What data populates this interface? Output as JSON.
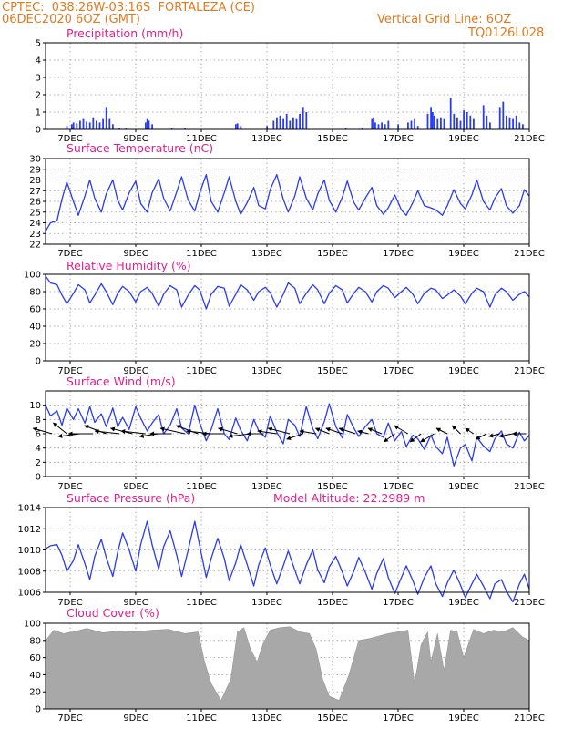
{
  "header": {
    "line1": "CPTEC:  038:26W-03:16S  FORTALEZA (CE)",
    "line2": "06DEC2020 6OZ (GMT)",
    "right1": "Vertical Grid Line: 6OZ",
    "right2": "TQ0126L028"
  },
  "colors": {
    "header": "#e07a1f",
    "titles": "#e0208c",
    "series": "#2a3cf0",
    "cloud": "#a8a8a8",
    "arrows": "#000000"
  },
  "x_ticks": [
    "7DEC",
    "9DEC",
    "11DEC",
    "13DEC",
    "15DEC",
    "17DEC",
    "19DEC",
    "21DEC"
  ],
  "chart_data": [
    {
      "type": "bar",
      "title": "Precipitation (mm/h)",
      "ylim": [
        0,
        5
      ],
      "yticks": [
        "0",
        "1",
        "2",
        "3",
        "4",
        "5"
      ],
      "x_range_days": [
        6.25,
        21.0
      ],
      "bars": [
        [
          6.9,
          0.2
        ],
        [
          7.05,
          0.3
        ],
        [
          7.1,
          0.4
        ],
        [
          7.2,
          0.35
        ],
        [
          7.3,
          0.5
        ],
        [
          7.4,
          0.6
        ],
        [
          7.5,
          0.45
        ],
        [
          7.6,
          0.4
        ],
        [
          7.7,
          0.7
        ],
        [
          7.8,
          0.5
        ],
        [
          7.9,
          0.4
        ],
        [
          8.0,
          0.6
        ],
        [
          8.1,
          1.3
        ],
        [
          8.2,
          0.6
        ],
        [
          8.3,
          0.3
        ],
        [
          8.5,
          0.1
        ],
        [
          8.7,
          0.1
        ],
        [
          9.3,
          0.4
        ],
        [
          9.35,
          0.6
        ],
        [
          9.4,
          0.5
        ],
        [
          9.5,
          0.3
        ],
        [
          10.1,
          0.1
        ],
        [
          10.5,
          0.1
        ],
        [
          12.05,
          0.3
        ],
        [
          12.1,
          0.35
        ],
        [
          12.2,
          0.2
        ],
        [
          13.0,
          0.2
        ],
        [
          13.2,
          0.5
        ],
        [
          13.3,
          0.7
        ],
        [
          13.4,
          0.8
        ],
        [
          13.5,
          0.6
        ],
        [
          13.6,
          0.9
        ],
        [
          13.7,
          0.5
        ],
        [
          13.8,
          0.7
        ],
        [
          13.9,
          0.6
        ],
        [
          14.0,
          0.9
        ],
        [
          14.1,
          1.3
        ],
        [
          14.2,
          1.0
        ],
        [
          15.4,
          0.1
        ],
        [
          15.9,
          0.1
        ],
        [
          16.2,
          0.6
        ],
        [
          16.25,
          0.7
        ],
        [
          16.3,
          0.4
        ],
        [
          16.4,
          0.3
        ],
        [
          16.5,
          0.4
        ],
        [
          16.6,
          0.3
        ],
        [
          16.7,
          0.5
        ],
        [
          17.0,
          0.3
        ],
        [
          17.3,
          0.4
        ],
        [
          17.4,
          0.5
        ],
        [
          17.5,
          0.6
        ],
        [
          17.6,
          0.2
        ],
        [
          17.9,
          0.9
        ],
        [
          18.0,
          1.3
        ],
        [
          18.05,
          1.0
        ],
        [
          18.1,
          0.8
        ],
        [
          18.2,
          0.6
        ],
        [
          18.3,
          0.7
        ],
        [
          18.4,
          0.6
        ],
        [
          18.6,
          1.8
        ],
        [
          18.7,
          0.9
        ],
        [
          18.8,
          0.7
        ],
        [
          18.9,
          0.5
        ],
        [
          19.0,
          1.1
        ],
        [
          19.1,
          1.0
        ],
        [
          19.2,
          0.8
        ],
        [
          19.3,
          0.6
        ],
        [
          19.6,
          1.4
        ],
        [
          19.7,
          0.8
        ],
        [
          19.8,
          0.4
        ],
        [
          20.1,
          1.3
        ],
        [
          20.2,
          1.6
        ],
        [
          20.3,
          0.8
        ],
        [
          20.4,
          0.7
        ],
        [
          20.5,
          0.6
        ],
        [
          20.6,
          0.8
        ],
        [
          20.7,
          0.4
        ],
        [
          20.8,
          0.3
        ]
      ]
    },
    {
      "type": "line",
      "title": "Surface Temperature (nC)",
      "ylim": [
        22,
        30
      ],
      "yticks": [
        "22",
        "23",
        "24",
        "25",
        "26",
        "27",
        "28",
        "29",
        "30"
      ],
      "x": [
        6.25,
        6.4,
        6.6,
        6.75,
        6.9,
        7.1,
        7.25,
        7.45,
        7.6,
        7.75,
        7.95,
        8.1,
        8.3,
        8.45,
        8.6,
        8.8,
        9.0,
        9.15,
        9.35,
        9.5,
        9.7,
        9.85,
        10.05,
        10.25,
        10.4,
        10.6,
        10.8,
        10.95,
        11.15,
        11.3,
        11.5,
        11.7,
        11.85,
        12.05,
        12.2,
        12.4,
        12.6,
        12.75,
        12.95,
        13.1,
        13.3,
        13.5,
        13.65,
        13.85,
        14.0,
        14.2,
        14.4,
        14.55,
        14.75,
        14.9,
        15.1,
        15.3,
        15.45,
        15.65,
        15.8,
        16.0,
        16.2,
        16.35,
        16.55,
        16.7,
        16.9,
        17.1,
        17.25,
        17.45,
        17.6,
        17.8,
        18.0,
        18.15,
        18.35,
        18.5,
        18.7,
        18.9,
        19.05,
        19.25,
        19.4,
        19.6,
        19.8,
        19.95,
        20.15,
        20.3,
        20.5,
        20.7,
        20.85,
        21.0
      ],
      "values": [
        23.2,
        24.0,
        24.2,
        26.2,
        27.8,
        26.0,
        24.7,
        26.5,
        28.0,
        26.3,
        25.0,
        26.7,
        28.0,
        26.1,
        25.2,
        26.8,
        27.9,
        25.8,
        25.0,
        26.8,
        28.1,
        26.3,
        25.1,
        26.9,
        28.3,
        26.1,
        25.1,
        26.8,
        28.5,
        26.0,
        25.0,
        26.8,
        28.3,
        26.0,
        24.8,
        25.9,
        27.3,
        25.6,
        25.3,
        27.1,
        28.5,
        26.2,
        25.0,
        26.5,
        28.3,
        26.3,
        25.2,
        26.7,
        28.0,
        26.1,
        25.0,
        26.4,
        27.9,
        25.9,
        25.2,
        26.3,
        27.3,
        25.6,
        24.8,
        25.4,
        26.6,
        25.2,
        24.7,
        25.9,
        27.0,
        25.6,
        25.4,
        25.2,
        24.7,
        25.6,
        27.1,
        25.8,
        25.3,
        26.6,
        28.0,
        26.0,
        25.2,
        26.3,
        27.2,
        25.6,
        24.9,
        25.6,
        27.1,
        26.5
      ]
    },
    {
      "type": "line",
      "title": "Relative Humidity (%)",
      "ylim": [
        0,
        100
      ],
      "yticks": [
        "0",
        "20",
        "40",
        "60",
        "80",
        "100"
      ],
      "x": [
        6.25,
        6.4,
        6.6,
        6.75,
        6.9,
        7.1,
        7.25,
        7.45,
        7.6,
        7.75,
        7.95,
        8.1,
        8.3,
        8.45,
        8.6,
        8.8,
        9.0,
        9.15,
        9.35,
        9.5,
        9.7,
        9.85,
        10.05,
        10.25,
        10.4,
        10.6,
        10.8,
        10.95,
        11.15,
        11.3,
        11.5,
        11.7,
        11.85,
        12.05,
        12.2,
        12.4,
        12.6,
        12.75,
        12.95,
        13.1,
        13.3,
        13.5,
        13.65,
        13.85,
        14.0,
        14.2,
        14.4,
        14.55,
        14.75,
        14.9,
        15.1,
        15.3,
        15.45,
        15.65,
        15.8,
        16.0,
        16.2,
        16.35,
        16.55,
        16.7,
        16.9,
        17.1,
        17.25,
        17.45,
        17.6,
        17.8,
        18.0,
        18.15,
        18.35,
        18.5,
        18.7,
        18.9,
        19.05,
        19.25,
        19.4,
        19.6,
        19.8,
        19.95,
        20.15,
        20.3,
        20.5,
        20.7,
        20.85,
        21.0
      ],
      "values": [
        98,
        90,
        88,
        76,
        66,
        78,
        88,
        82,
        67,
        76,
        89,
        80,
        65,
        78,
        86,
        80,
        68,
        80,
        85,
        78,
        63,
        77,
        87,
        82,
        62,
        76,
        87,
        82,
        60,
        77,
        86,
        84,
        63,
        77,
        88,
        82,
        70,
        80,
        85,
        79,
        62,
        77,
        90,
        84,
        66,
        78,
        88,
        82,
        66,
        78,
        87,
        82,
        67,
        78,
        85,
        80,
        68,
        80,
        87,
        84,
        73,
        80,
        85,
        77,
        66,
        78,
        84,
        82,
        72,
        76,
        82,
        75,
        66,
        78,
        84,
        80,
        62,
        76,
        84,
        80,
        70,
        77,
        80,
        74
      ]
    },
    {
      "type": "line",
      "title": "Surface Wind (m/s)",
      "ylim": [
        0,
        12
      ],
      "yticks": [
        "0",
        "2",
        "4",
        "6",
        "8",
        "10"
      ],
      "x": [
        6.25,
        6.4,
        6.6,
        6.75,
        6.9,
        7.1,
        7.25,
        7.45,
        7.6,
        7.75,
        7.95,
        8.1,
        8.3,
        8.45,
        8.6,
        8.8,
        9.0,
        9.15,
        9.35,
        9.5,
        9.7,
        9.85,
        10.05,
        10.25,
        10.4,
        10.6,
        10.8,
        10.95,
        11.15,
        11.3,
        11.5,
        11.7,
        11.85,
        12.05,
        12.2,
        12.4,
        12.6,
        12.75,
        12.95,
        13.1,
        13.3,
        13.5,
        13.65,
        13.85,
        14.0,
        14.2,
        14.4,
        14.55,
        14.75,
        14.9,
        15.1,
        15.3,
        15.45,
        15.65,
        15.8,
        16.0,
        16.2,
        16.35,
        16.55,
        16.7,
        16.9,
        17.1,
        17.25,
        17.45,
        17.6,
        17.8,
        18.0,
        18.15,
        18.35,
        18.5,
        18.7,
        18.9,
        19.05,
        19.25,
        19.4,
        19.6,
        19.8,
        19.95,
        20.15,
        20.3,
        20.5,
        20.7,
        20.85,
        21.0
      ],
      "values": [
        10.0,
        8.5,
        9.2,
        7.2,
        9.6,
        8.0,
        9.5,
        7.5,
        9.8,
        7.6,
        8.8,
        7.0,
        9.6,
        7.0,
        8.3,
        6.6,
        9.8,
        8.2,
        6.4,
        7.5,
        8.7,
        6.0,
        7.2,
        9.5,
        6.8,
        6.0,
        10.0,
        7.5,
        5.0,
        6.6,
        9.5,
        6.0,
        5.2,
        8.2,
        6.5,
        5.0,
        8.0,
        6.4,
        5.5,
        8.5,
        6.2,
        4.6,
        8.0,
        7.2,
        5.6,
        9.8,
        6.7,
        5.3,
        7.7,
        10.2,
        7.0,
        5.4,
        8.7,
        6.8,
        5.6,
        7.0,
        8.0,
        6.0,
        5.5,
        7.5,
        5.0,
        6.3,
        4.2,
        5.8,
        5.3,
        3.8,
        5.8,
        4.2,
        3.2,
        5.5,
        1.5,
        4.0,
        4.5,
        2.2,
        5.5,
        4.3,
        3.5,
        5.3,
        6.4,
        4.6,
        4.0,
        6.2,
        5.0,
        5.8
      ],
      "vector_x_days": [
        6.45,
        6.9,
        7.3,
        7.7,
        8.1,
        8.5,
        8.9,
        9.3,
        9.7,
        10.1,
        10.5,
        10.9,
        11.3,
        11.7,
        12.1,
        12.5,
        12.9,
        13.3,
        13.7,
        14.1,
        14.5,
        14.9,
        15.3,
        15.7,
        16.1,
        16.5,
        16.9,
        17.3,
        17.7,
        18.1,
        18.5,
        18.9,
        19.3,
        19.7,
        20.1,
        20.5,
        20.9
      ],
      "vector_u": [
        -7,
        -5,
        -8,
        -9,
        -8,
        -9,
        -8,
        -9,
        -7,
        -8,
        -9,
        -8,
        -9,
        -8,
        -7,
        -8,
        -6,
        -7,
        -8,
        -6,
        -6,
        -5,
        -6,
        -6,
        -4,
        -5,
        -4,
        -5,
        -4,
        -5,
        -4,
        -3,
        -3,
        -4,
        -4,
        -5,
        -5
      ],
      "vector_v": [
        2,
        4,
        -1,
        0,
        3,
        1,
        2,
        1,
        -1,
        0,
        2,
        3,
        1,
        0,
        2,
        -1,
        0,
        1,
        2,
        -2,
        1,
        2,
        2,
        2,
        1,
        2,
        -3,
        3,
        -3,
        -3,
        2,
        3,
        2,
        -2,
        -1,
        -1,
        0
      ]
    },
    {
      "type": "line",
      "title": "Surface Pressure (hPa)",
      "annotation": "Model Altitude: 22.2989  m",
      "ylim": [
        1006,
        1014
      ],
      "yticks": [
        "1006",
        "1008",
        "1010",
        "1012",
        "1014"
      ],
      "x": [
        6.25,
        6.4,
        6.6,
        6.75,
        6.9,
        7.1,
        7.25,
        7.45,
        7.6,
        7.75,
        7.95,
        8.1,
        8.3,
        8.45,
        8.6,
        8.8,
        9.0,
        9.15,
        9.35,
        9.5,
        9.7,
        9.85,
        10.05,
        10.25,
        10.4,
        10.6,
        10.8,
        10.95,
        11.15,
        11.3,
        11.5,
        11.7,
        11.85,
        12.05,
        12.2,
        12.4,
        12.6,
        12.75,
        12.95,
        13.1,
        13.3,
        13.5,
        13.65,
        13.85,
        14.0,
        14.2,
        14.4,
        14.55,
        14.75,
        14.9,
        15.1,
        15.3,
        15.45,
        15.65,
        15.8,
        16.0,
        16.2,
        16.35,
        16.55,
        16.7,
        16.9,
        17.1,
        17.25,
        17.45,
        17.6,
        17.8,
        18.0,
        18.15,
        18.35,
        18.5,
        18.7,
        18.9,
        19.05,
        19.25,
        19.4,
        19.6,
        19.8,
        19.95,
        20.15,
        20.3,
        20.5,
        20.7,
        20.85,
        21.0
      ],
      "values": [
        1010.1,
        1010.4,
        1010.5,
        1009.5,
        1008.0,
        1009.0,
        1010.5,
        1008.7,
        1007.2,
        1009.4,
        1011.0,
        1009.3,
        1007.5,
        1009.8,
        1011.6,
        1010.0,
        1008.0,
        1010.5,
        1012.7,
        1010.5,
        1008.2,
        1010.3,
        1011.8,
        1009.5,
        1007.5,
        1010.0,
        1012.7,
        1010.4,
        1007.4,
        1009.2,
        1011.1,
        1009.2,
        1007.1,
        1008.8,
        1010.5,
        1008.6,
        1006.6,
        1008.6,
        1010.2,
        1008.6,
        1006.8,
        1008.5,
        1009.9,
        1008.1,
        1006.8,
        1008.6,
        1010.0,
        1008.1,
        1006.9,
        1008.4,
        1009.4,
        1007.9,
        1006.6,
        1008.0,
        1009.3,
        1007.9,
        1006.3,
        1007.8,
        1009.2,
        1007.4,
        1005.9,
        1007.4,
        1008.5,
        1007.1,
        1005.8,
        1007.4,
        1008.5,
        1006.8,
        1005.6,
        1006.9,
        1008.1,
        1006.7,
        1005.5,
        1006.8,
        1007.7,
        1006.6,
        1005.4,
        1006.8,
        1007.2,
        1006.1,
        1005.1,
        1006.8,
        1007.7,
        1006.3
      ]
    },
    {
      "type": "area",
      "title": "Cloud Cover (%)",
      "ylim": [
        0,
        100
      ],
      "yticks": [
        "0",
        "20",
        "40",
        "60",
        "80",
        "100"
      ],
      "x": [
        6.25,
        6.5,
        6.8,
        7.1,
        7.5,
        8.0,
        8.5,
        9.0,
        9.5,
        10.0,
        10.5,
        10.9,
        11.1,
        11.3,
        11.6,
        11.9,
        12.1,
        12.3,
        12.5,
        12.7,
        12.9,
        13.1,
        13.4,
        13.7,
        14.0,
        14.3,
        14.5,
        14.7,
        14.9,
        15.2,
        15.5,
        15.8,
        16.1,
        16.4,
        16.7,
        17.0,
        17.3,
        17.5,
        17.7,
        17.9,
        18.0,
        18.2,
        18.4,
        18.6,
        18.8,
        19.0,
        19.3,
        19.6,
        19.9,
        20.2,
        20.5,
        20.8,
        21.0
      ],
      "values": [
        80,
        92,
        88,
        90,
        94,
        89,
        91,
        90,
        92,
        93,
        88,
        90,
        55,
        30,
        10,
        35,
        90,
        95,
        70,
        55,
        78,
        92,
        95,
        96,
        90,
        88,
        70,
        35,
        15,
        10,
        40,
        80,
        82,
        85,
        88,
        90,
        92,
        30,
        75,
        90,
        55,
        88,
        45,
        92,
        90,
        60,
        93,
        88,
        92,
        90,
        95,
        84,
        80
      ]
    }
  ]
}
